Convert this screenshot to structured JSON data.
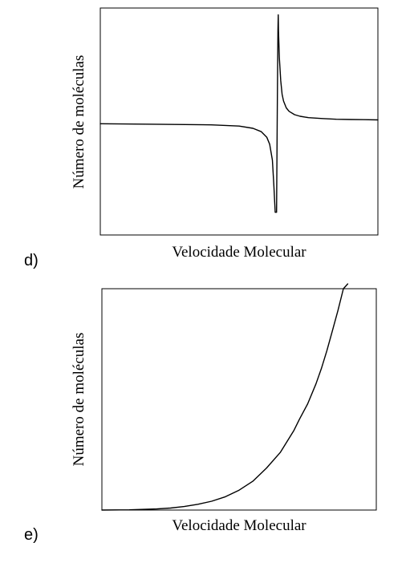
{
  "chart_data": [
    {
      "panel_label": "d)",
      "type": "line",
      "title": "",
      "xlabel": "Velocidade Molecular",
      "ylabel": "Número de moléculas",
      "xlim": [
        0,
        1
      ],
      "ylim": [
        0,
        1
      ],
      "ticks": "none",
      "grid": false,
      "series": [
        {
          "x": [
            0.0,
            0.2,
            0.4,
            0.5,
            0.55,
            0.58,
            0.6,
            0.61,
            0.62,
            0.625,
            0.63,
            0.635,
            0.638,
            0.64,
            0.641,
            0.642,
            0.645,
            0.65,
            0.655,
            0.66,
            0.67,
            0.68,
            0.7,
            0.72,
            0.75,
            0.8,
            0.85,
            0.9,
            0.95,
            1.0
          ],
          "y": [
            0.49,
            0.488,
            0.485,
            0.48,
            0.47,
            0.455,
            0.43,
            0.4,
            0.33,
            0.22,
            0.1,
            0.1,
            0.6,
            0.9,
            0.97,
            0.9,
            0.78,
            0.68,
            0.62,
            0.59,
            0.56,
            0.545,
            0.53,
            0.523,
            0.517,
            0.513,
            0.51,
            0.509,
            0.508,
            0.507
          ]
        }
      ]
    },
    {
      "panel_label": "e)",
      "type": "line",
      "title": "",
      "xlabel": "Velocidade Molecular",
      "ylabel": "Número de moléculas",
      "xlim": [
        0,
        1
      ],
      "ylim": [
        0,
        1
      ],
      "ticks": "none",
      "grid": false,
      "series": [
        {
          "x": [
            0.0,
            0.1,
            0.2,
            0.25,
            0.3,
            0.35,
            0.4,
            0.45,
            0.5,
            0.55,
            0.6,
            0.65,
            0.7,
            0.72,
            0.75,
            0.78,
            0.8,
            0.82,
            0.84,
            0.86,
            0.88,
            0.896
          ],
          "y": [
            0.0,
            0.001,
            0.005,
            0.009,
            0.016,
            0.026,
            0.04,
            0.06,
            0.09,
            0.13,
            0.19,
            0.26,
            0.36,
            0.41,
            0.48,
            0.57,
            0.64,
            0.72,
            0.81,
            0.9,
            1.0,
            1.05
          ]
        }
      ]
    }
  ]
}
